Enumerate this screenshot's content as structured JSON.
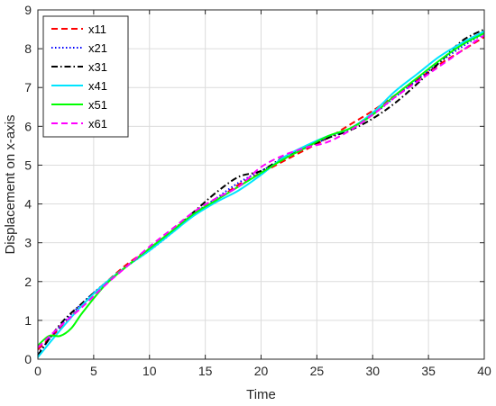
{
  "chart_data": {
    "type": "line",
    "xlabel": "Time",
    "ylabel": "Displacement on x-axis",
    "xlim": [
      0,
      40
    ],
    "ylim": [
      0,
      9
    ],
    "xticks": [
      "0",
      "5",
      "10",
      "15",
      "20",
      "25",
      "30",
      "35",
      "40"
    ],
    "yticks": [
      "0",
      "1",
      "2",
      "3",
      "4",
      "5",
      "6",
      "7",
      "8",
      "9"
    ],
    "grid": true,
    "legend_position": "top-left",
    "series": [
      {
        "name": "x11",
        "color": "#ff0000",
        "dash": "dashed",
        "x": [
          0,
          2,
          4,
          6,
          8,
          10,
          12,
          14,
          16,
          18,
          20,
          22,
          24,
          26,
          28,
          30,
          32,
          34,
          36,
          38,
          40
        ],
        "y": [
          0.25,
          0.8,
          1.4,
          1.95,
          2.45,
          2.85,
          3.3,
          3.75,
          4.1,
          4.5,
          4.8,
          5.1,
          5.4,
          5.7,
          6.05,
          6.4,
          6.8,
          7.2,
          7.6,
          7.95,
          8.3
        ]
      },
      {
        "name": "x21",
        "color": "#0000ff",
        "dash": "dotted",
        "x": [
          0,
          2,
          4,
          6,
          8,
          10,
          12,
          14,
          16,
          18,
          20,
          22,
          24,
          26,
          28,
          30,
          32,
          34,
          36,
          38,
          40
        ],
        "y": [
          0.15,
          0.85,
          1.45,
          1.95,
          2.4,
          2.8,
          3.25,
          3.75,
          4.15,
          4.55,
          4.85,
          5.15,
          5.45,
          5.7,
          5.95,
          6.3,
          6.75,
          7.2,
          7.65,
          8.05,
          8.4
        ]
      },
      {
        "name": "x31",
        "color": "#000000",
        "dash": "dashdot",
        "x": [
          0,
          2,
          4,
          6,
          8,
          10,
          12,
          14,
          16,
          18,
          20,
          22,
          24,
          26,
          28,
          30,
          32,
          34,
          36,
          38,
          40
        ],
        "y": [
          0.1,
          0.9,
          1.45,
          1.95,
          2.4,
          2.85,
          3.3,
          3.8,
          4.3,
          4.7,
          4.85,
          5.2,
          5.45,
          5.7,
          5.9,
          6.2,
          6.6,
          7.1,
          7.65,
          8.2,
          8.5
        ]
      },
      {
        "name": "x41",
        "color": "#00e5ff",
        "dash": "solid",
        "x": [
          0,
          2,
          4,
          6,
          8,
          10,
          12,
          14,
          16,
          18,
          20,
          22,
          24,
          26,
          28,
          30,
          32,
          34,
          36,
          38,
          40
        ],
        "y": [
          0.05,
          0.75,
          1.4,
          1.95,
          2.4,
          2.8,
          3.25,
          3.7,
          4.05,
          4.35,
          4.75,
          5.2,
          5.5,
          5.75,
          5.95,
          6.35,
          6.9,
          7.35,
          7.8,
          8.15,
          8.45
        ]
      },
      {
        "name": "x51",
        "color": "#00ff00",
        "dash": "solid",
        "x": [
          0,
          1,
          2,
          3,
          4,
          6,
          8,
          10,
          12,
          14,
          16,
          18,
          20,
          22,
          24,
          26,
          28,
          30,
          32,
          34,
          36,
          38,
          40
        ],
        "y": [
          0.35,
          0.6,
          0.6,
          0.8,
          1.2,
          1.9,
          2.4,
          2.85,
          3.3,
          3.75,
          4.1,
          4.45,
          4.8,
          5.15,
          5.45,
          5.75,
          5.95,
          6.3,
          6.8,
          7.25,
          7.7,
          8.1,
          8.4
        ]
      },
      {
        "name": "x61",
        "color": "#ff00ff",
        "dash": "dashed",
        "x": [
          0,
          2,
          4,
          6,
          8,
          10,
          12,
          14,
          16,
          18,
          20,
          22,
          24,
          26,
          28,
          30,
          32,
          34,
          36,
          38,
          40
        ],
        "y": [
          0.3,
          0.85,
          1.35,
          1.9,
          2.4,
          2.9,
          3.35,
          3.8,
          4.15,
          4.45,
          4.95,
          5.25,
          5.45,
          5.6,
          5.9,
          6.3,
          6.75,
          7.15,
          7.55,
          7.95,
          8.35
        ]
      }
    ]
  }
}
